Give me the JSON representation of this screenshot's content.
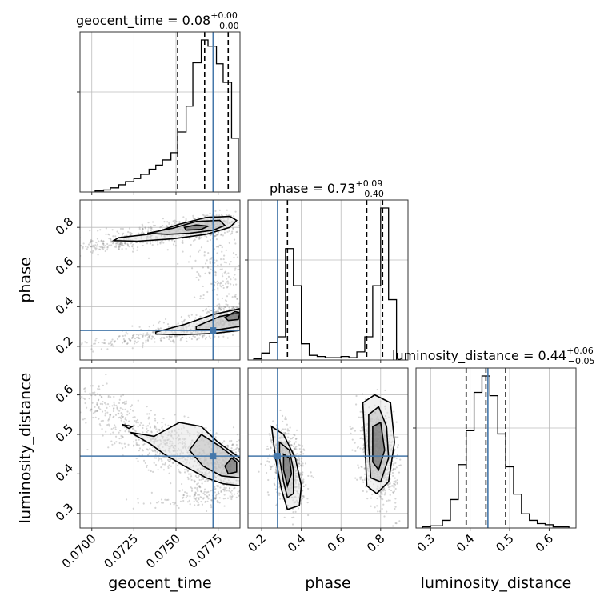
{
  "chart_data": {
    "type": "scatter",
    "subtype": "corner-plot",
    "parameters": [
      "geocent_time",
      "phase",
      "luminosity_distance"
    ],
    "titles": {
      "geocent_time": {
        "name": "geocent_time",
        "median": "0.08",
        "plus": "+0.00",
        "minus": "−0.00"
      },
      "phase": {
        "name": "phase",
        "median": "0.73",
        "plus": "+0.09",
        "minus": "−0.40"
      },
      "luminosity_distance": {
        "name": "luminosity_distance",
        "median": "0.44",
        "plus": "+0.06",
        "minus": "−0.05"
      }
    },
    "axis_labels": {
      "x": [
        "geocent_time",
        "phase",
        "luminosity_distance"
      ],
      "y": [
        "phase",
        "luminosity_distance"
      ]
    },
    "ranges": {
      "geocent_time": [
        0.0693,
        0.0788
      ],
      "phase": [
        0.131,
        0.938
      ],
      "luminosity_distance": [
        0.263,
        0.668
      ]
    },
    "ticks": {
      "geocent_time": [
        "0.0700",
        "0.0725",
        "0.0750",
        "0.0775"
      ],
      "phase": [
        "0.2",
        "0.4",
        "0.6",
        "0.8"
      ],
      "phase_y": [
        "0.2",
        "0.4",
        "0.6",
        "0.8"
      ],
      "luminosity_distance": [
        "0.3",
        "0.4",
        "0.5",
        "0.6"
      ]
    },
    "truths": {
      "geocent_time": 0.0772,
      "phase": 0.28,
      "luminosity_distance": 0.445
    },
    "quantiles": {
      "geocent_time": [
        0.0751,
        0.0767,
        0.0781
      ],
      "phase": [
        0.33,
        0.73,
        0.81
      ],
      "luminosity_distance": [
        0.39,
        0.44,
        0.49
      ]
    },
    "histograms": {
      "geocent_time": {
        "edges": [
          0.0702,
          0.0707,
          0.0711,
          0.0716,
          0.072,
          0.0725,
          0.0729,
          0.0734,
          0.0738,
          0.0742,
          0.0747,
          0.0751,
          0.0756,
          0.076,
          0.0765,
          0.0769,
          0.0774,
          0.0778,
          0.0783,
          0.0787
        ],
        "counts": [
          1,
          2,
          4,
          7,
          10,
          13,
          17,
          22,
          26,
          31,
          38,
          58,
          83,
          125,
          147,
          141,
          124,
          106,
          52
        ],
        "ymax": 1.0
      },
      "phase": {
        "edges": [
          0.16,
          0.2,
          0.24,
          0.28,
          0.32,
          0.36,
          0.4,
          0.44,
          0.48,
          0.52,
          0.56,
          0.6,
          0.64,
          0.68,
          0.72,
          0.76,
          0.8,
          0.84,
          0.88
        ],
        "counts": [
          1,
          6,
          15,
          20,
          96,
          64,
          14,
          4,
          3,
          2,
          2,
          3,
          2,
          7,
          20,
          64,
          131,
          52
        ],
        "ymax": 1.0
      },
      "luminosity_distance": {
        "edges": [
          0.28,
          0.3,
          0.33,
          0.35,
          0.37,
          0.39,
          0.41,
          0.43,
          0.45,
          0.47,
          0.49,
          0.51,
          0.53,
          0.55,
          0.57,
          0.59,
          0.61,
          0.63,
          0.65
        ],
        "counts": [
          1,
          2,
          7,
          26,
          58,
          89,
          124,
          139,
          121,
          86,
          56,
          31,
          13,
          7,
          4,
          3,
          1,
          1
        ],
        "ymax": 1.0
      }
    },
    "scatter_clusters": {
      "phase_vs_geocent_time": [
        {
          "x": 0.0768,
          "y": 0.81,
          "sx": 0.0009,
          "sy": 0.03,
          "n": 350,
          "rho": 0.2
        },
        {
          "x": 0.0745,
          "y": 0.77,
          "sx": 0.0022,
          "sy": 0.035,
          "n": 350,
          "rho": 0.5
        },
        {
          "x": 0.0712,
          "y": 0.71,
          "sx": 0.0012,
          "sy": 0.02,
          "n": 110,
          "rho": 0.6
        },
        {
          "x": 0.0784,
          "y": 0.35,
          "sx": 0.0007,
          "sy": 0.03,
          "n": 350,
          "rho": 0.0
        },
        {
          "x": 0.0765,
          "y": 0.3,
          "sx": 0.002,
          "sy": 0.035,
          "n": 350,
          "rho": 0.6
        },
        {
          "x": 0.0735,
          "y": 0.24,
          "sx": 0.0022,
          "sy": 0.02,
          "n": 120,
          "rho": 0.7
        },
        {
          "x": 0.0775,
          "y": 0.58,
          "sx": 0.0008,
          "sy": 0.1,
          "n": 180,
          "rho": -0.2
        }
      ],
      "luminosity_distance_vs_geocent_time": [
        {
          "x": 0.0778,
          "y": 0.42,
          "sx": 0.0009,
          "sy": 0.035,
          "n": 550,
          "rho": 0.0
        },
        {
          "x": 0.0752,
          "y": 0.46,
          "sx": 0.0018,
          "sy": 0.04,
          "n": 420,
          "rho": -0.5
        },
        {
          "x": 0.0722,
          "y": 0.52,
          "sx": 0.0015,
          "sy": 0.04,
          "n": 200,
          "rho": -0.7
        },
        {
          "x": 0.0705,
          "y": 0.58,
          "sx": 0.0009,
          "sy": 0.03,
          "n": 70,
          "rho": -0.5
        },
        {
          "x": 0.0765,
          "y": 0.34,
          "sx": 0.0015,
          "sy": 0.012,
          "n": 120,
          "rho": 0.5
        }
      ],
      "luminosity_distance_vs_phase": [
        {
          "x": 0.33,
          "y": 0.42,
          "sx": 0.04,
          "sy": 0.045,
          "n": 800,
          "rho": -0.3
        },
        {
          "x": 0.79,
          "y": 0.45,
          "sx": 0.045,
          "sy": 0.055,
          "n": 900,
          "rho": -0.3
        }
      ]
    },
    "contours": {
      "phase_vs_geocent_time": [
        [
          {
            "x": 0.07515,
            "y": 0.815
          },
          {
            "x": 0.0768,
            "y": 0.85
          },
          {
            "x": 0.0782,
            "y": 0.855
          },
          {
            "x": 0.0786,
            "y": 0.835
          },
          {
            "x": 0.0782,
            "y": 0.8
          },
          {
            "x": 0.0768,
            "y": 0.765
          },
          {
            "x": 0.0748,
            "y": 0.742
          },
          {
            "x": 0.0727,
            "y": 0.73
          },
          {
            "x": 0.0713,
            "y": 0.733
          },
          {
            "x": 0.0716,
            "y": 0.748
          },
          {
            "x": 0.0735,
            "y": 0.766
          },
          {
            "x": 0.07515,
            "y": 0.815
          }
        ],
        [
          {
            "x": 0.0748,
            "y": 0.795
          },
          {
            "x": 0.0762,
            "y": 0.83
          },
          {
            "x": 0.0776,
            "y": 0.835
          },
          {
            "x": 0.0779,
            "y": 0.81
          },
          {
            "x": 0.0772,
            "y": 0.785
          },
          {
            "x": 0.0758,
            "y": 0.77
          },
          {
            "x": 0.0745,
            "y": 0.765
          },
          {
            "x": 0.0733,
            "y": 0.77
          },
          {
            "x": 0.0748,
            "y": 0.795
          }
        ],
        [
          {
            "x": 0.0755,
            "y": 0.8
          },
          {
            "x": 0.0762,
            "y": 0.812
          },
          {
            "x": 0.0769,
            "y": 0.806
          },
          {
            "x": 0.0765,
            "y": 0.79
          },
          {
            "x": 0.0756,
            "y": 0.786
          },
          {
            "x": 0.0755,
            "y": 0.8
          }
        ],
        [
          {
            "x": 0.0738,
            "y": 0.272
          },
          {
            "x": 0.0755,
            "y": 0.31
          },
          {
            "x": 0.0772,
            "y": 0.36
          },
          {
            "x": 0.0788,
            "y": 0.39
          },
          {
            "x": 0.0788,
            "y": 0.28
          },
          {
            "x": 0.0772,
            "y": 0.265
          },
          {
            "x": 0.0752,
            "y": 0.258
          },
          {
            "x": 0.0738,
            "y": 0.262
          },
          {
            "x": 0.0738,
            "y": 0.272
          }
        ],
        [
          {
            "x": 0.0762,
            "y": 0.3
          },
          {
            "x": 0.0776,
            "y": 0.35
          },
          {
            "x": 0.0788,
            "y": 0.37
          },
          {
            "x": 0.0788,
            "y": 0.3
          },
          {
            "x": 0.0776,
            "y": 0.285
          },
          {
            "x": 0.0762,
            "y": 0.285
          },
          {
            "x": 0.0762,
            "y": 0.3
          }
        ],
        [
          {
            "x": 0.0779,
            "y": 0.345
          },
          {
            "x": 0.0785,
            "y": 0.375
          },
          {
            "x": 0.0788,
            "y": 0.37
          },
          {
            "x": 0.0787,
            "y": 0.335
          },
          {
            "x": 0.0781,
            "y": 0.33
          },
          {
            "x": 0.0779,
            "y": 0.345
          }
        ]
      ],
      "luminosity_distance_vs_geocent_time": [
        [
          {
            "x": 0.0723,
            "y": 0.505
          },
          {
            "x": 0.0737,
            "y": 0.495
          },
          {
            "x": 0.0752,
            "y": 0.53
          },
          {
            "x": 0.0765,
            "y": 0.52
          },
          {
            "x": 0.0775,
            "y": 0.48
          },
          {
            "x": 0.0788,
            "y": 0.44
          },
          {
            "x": 0.0788,
            "y": 0.37
          },
          {
            "x": 0.0778,
            "y": 0.375
          },
          {
            "x": 0.0768,
            "y": 0.39
          },
          {
            "x": 0.0755,
            "y": 0.42
          },
          {
            "x": 0.0743,
            "y": 0.45
          },
          {
            "x": 0.0735,
            "y": 0.475
          },
          {
            "x": 0.0723,
            "y": 0.505
          }
        ],
        [
          {
            "x": 0.0758,
            "y": 0.46
          },
          {
            "x": 0.0765,
            "y": 0.5
          },
          {
            "x": 0.0776,
            "y": 0.47
          },
          {
            "x": 0.0788,
            "y": 0.43
          },
          {
            "x": 0.0788,
            "y": 0.39
          },
          {
            "x": 0.0777,
            "y": 0.395
          },
          {
            "x": 0.0766,
            "y": 0.42
          },
          {
            "x": 0.0758,
            "y": 0.46
          }
        ],
        [
          {
            "x": 0.0779,
            "y": 0.42
          },
          {
            "x": 0.0783,
            "y": 0.44
          },
          {
            "x": 0.0786,
            "y": 0.43
          },
          {
            "x": 0.0786,
            "y": 0.405
          },
          {
            "x": 0.0781,
            "y": 0.4
          },
          {
            "x": 0.0779,
            "y": 0.42
          }
        ],
        [
          {
            "x": 0.0718,
            "y": 0.525
          },
          {
            "x": 0.0722,
            "y": 0.515
          },
          {
            "x": 0.0724,
            "y": 0.52
          },
          {
            "x": 0.0718,
            "y": 0.525
          }
        ]
      ],
      "luminosity_distance_vs_phase": [
        [
          {
            "x": 0.25,
            "y": 0.52
          },
          {
            "x": 0.31,
            "y": 0.5
          },
          {
            "x": 0.37,
            "y": 0.44
          },
          {
            "x": 0.4,
            "y": 0.37
          },
          {
            "x": 0.39,
            "y": 0.32
          },
          {
            "x": 0.33,
            "y": 0.31
          },
          {
            "x": 0.3,
            "y": 0.36
          },
          {
            "x": 0.27,
            "y": 0.44
          },
          {
            "x": 0.25,
            "y": 0.52
          }
        ],
        [
          {
            "x": 0.29,
            "y": 0.48
          },
          {
            "x": 0.34,
            "y": 0.46
          },
          {
            "x": 0.36,
            "y": 0.41
          },
          {
            "x": 0.36,
            "y": 0.35
          },
          {
            "x": 0.33,
            "y": 0.34
          },
          {
            "x": 0.31,
            "y": 0.38
          },
          {
            "x": 0.29,
            "y": 0.44
          },
          {
            "x": 0.29,
            "y": 0.48
          }
        ],
        [
          {
            "x": 0.31,
            "y": 0.45
          },
          {
            "x": 0.34,
            "y": 0.44
          },
          {
            "x": 0.35,
            "y": 0.4
          },
          {
            "x": 0.33,
            "y": 0.37
          },
          {
            "x": 0.31,
            "y": 0.41
          },
          {
            "x": 0.31,
            "y": 0.45
          }
        ],
        [
          {
            "x": 0.71,
            "y": 0.58
          },
          {
            "x": 0.77,
            "y": 0.6
          },
          {
            "x": 0.85,
            "y": 0.58
          },
          {
            "x": 0.87,
            "y": 0.48
          },
          {
            "x": 0.84,
            "y": 0.38
          },
          {
            "x": 0.78,
            "y": 0.35
          },
          {
            "x": 0.73,
            "y": 0.37
          },
          {
            "x": 0.72,
            "y": 0.48
          },
          {
            "x": 0.71,
            "y": 0.58
          }
        ],
        [
          {
            "x": 0.74,
            "y": 0.55
          },
          {
            "x": 0.79,
            "y": 0.57
          },
          {
            "x": 0.83,
            "y": 0.52
          },
          {
            "x": 0.84,
            "y": 0.44
          },
          {
            "x": 0.8,
            "y": 0.38
          },
          {
            "x": 0.75,
            "y": 0.39
          },
          {
            "x": 0.74,
            "y": 0.47
          },
          {
            "x": 0.74,
            "y": 0.55
          }
        ],
        [
          {
            "x": 0.76,
            "y": 0.52
          },
          {
            "x": 0.8,
            "y": 0.53
          },
          {
            "x": 0.82,
            "y": 0.46
          },
          {
            "x": 0.79,
            "y": 0.41
          },
          {
            "x": 0.76,
            "y": 0.43
          },
          {
            "x": 0.76,
            "y": 0.52
          }
        ]
      ]
    },
    "colors": {
      "truth": "#4477aa",
      "hist": "#000000",
      "scatter": "#888888",
      "grid": "#bbbbbb",
      "contour": "#000000"
    },
    "grid": true,
    "legend": "none"
  }
}
